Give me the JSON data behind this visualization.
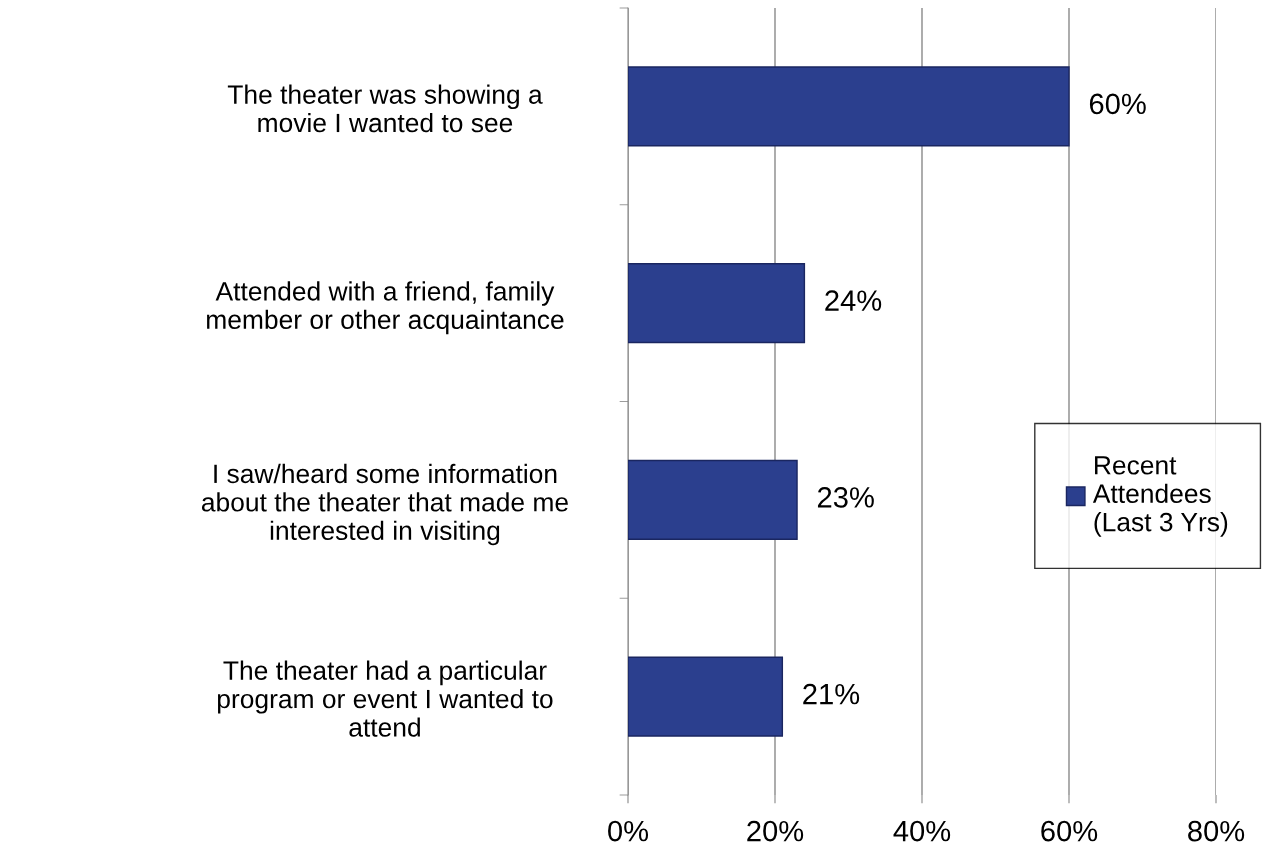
{
  "chart_data": {
    "type": "bar",
    "orientation": "horizontal",
    "categories": [
      "The theater was showing a movie I wanted to see",
      "Attended with a friend, family member or other acquaintance",
      "I saw/heard some information about the theater that made me interested in visiting",
      "The theater had a particular program or event I wanted to attend"
    ],
    "series": [
      {
        "name": "Recent Attendees (Last 3 Yrs)",
        "color": "#2b3f8e",
        "values": [
          60,
          24,
          23,
          21
        ],
        "value_labels": [
          "60%",
          "24%",
          "23%",
          "21%"
        ]
      }
    ],
    "xlim": [
      0,
      80
    ],
    "xticks": [
      {
        "value": 0,
        "label": "0%"
      },
      {
        "value": 20,
        "label": "20%"
      },
      {
        "value": 40,
        "label": "40%"
      },
      {
        "value": 60,
        "label": "60%"
      },
      {
        "value": 80,
        "label": "80%"
      }
    ],
    "grid": "x",
    "legend": "right"
  }
}
